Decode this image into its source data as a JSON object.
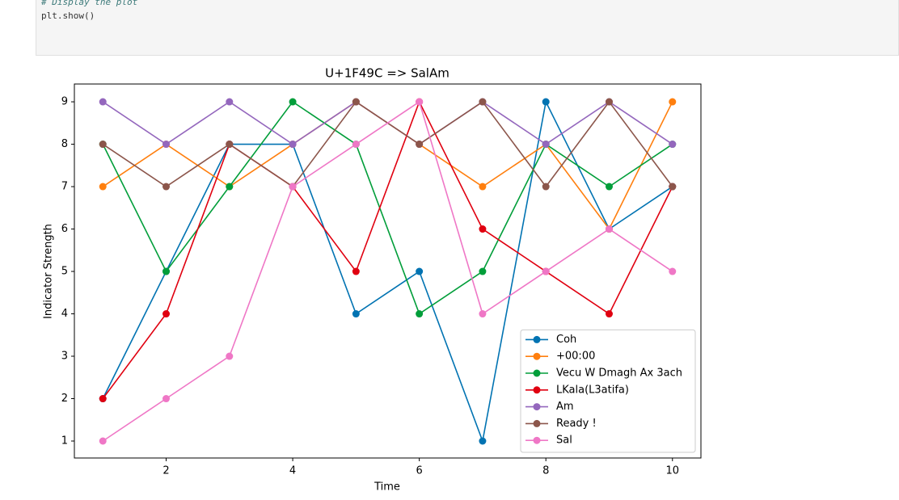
{
  "code": {
    "lines": [
      "# Display the plot",
      "plt.show()"
    ]
  },
  "chart_data": {
    "type": "line",
    "title": "U+1F49C => SalAm",
    "xlabel": "Time",
    "ylabel": "Indicator Strength",
    "x": [
      1,
      2,
      3,
      4,
      5,
      6,
      7,
      8,
      9,
      10
    ],
    "series": [
      {
        "name": "Coh",
        "color": "#0173b2",
        "values": [
          2,
          5,
          8,
          8,
          4,
          5,
          1,
          9,
          6,
          7
        ]
      },
      {
        "name": "+00:00",
        "color": "#ff7f0e",
        "values": [
          7,
          8,
          7,
          8,
          9,
          8,
          7,
          8,
          6,
          9
        ]
      },
      {
        "name": "Vecu W Dmagh Ax 3ach",
        "color": "#029e3a",
        "values": [
          8,
          5,
          7,
          9,
          8,
          4,
          5,
          8,
          7,
          8
        ]
      },
      {
        "name": "LKala(L3atifa)",
        "color": "#e00010",
        "values": [
          2,
          4,
          8,
          7,
          5,
          9,
          6,
          5,
          4,
          7
        ]
      },
      {
        "name": "Am",
        "color": "#9467bd",
        "values": [
          9,
          8,
          9,
          8,
          9,
          8,
          9,
          8,
          9,
          8
        ]
      },
      {
        "name": "Ready !",
        "color": "#8c564b",
        "values": [
          8,
          7,
          8,
          7,
          9,
          8,
          9,
          7,
          9,
          7
        ]
      },
      {
        "name": "Sal",
        "color": "#ef77c6",
        "values": [
          1,
          2,
          3,
          7,
          8,
          9,
          4,
          5,
          6,
          5
        ]
      }
    ],
    "xlim": [
      0.55,
      10.45
    ],
    "ylim": [
      0.6,
      9.42
    ],
    "xticks": [
      2,
      4,
      6,
      8,
      10
    ],
    "yticks": [
      1,
      2,
      3,
      4,
      5,
      6,
      7,
      8,
      9
    ],
    "legend": "lower right"
  }
}
